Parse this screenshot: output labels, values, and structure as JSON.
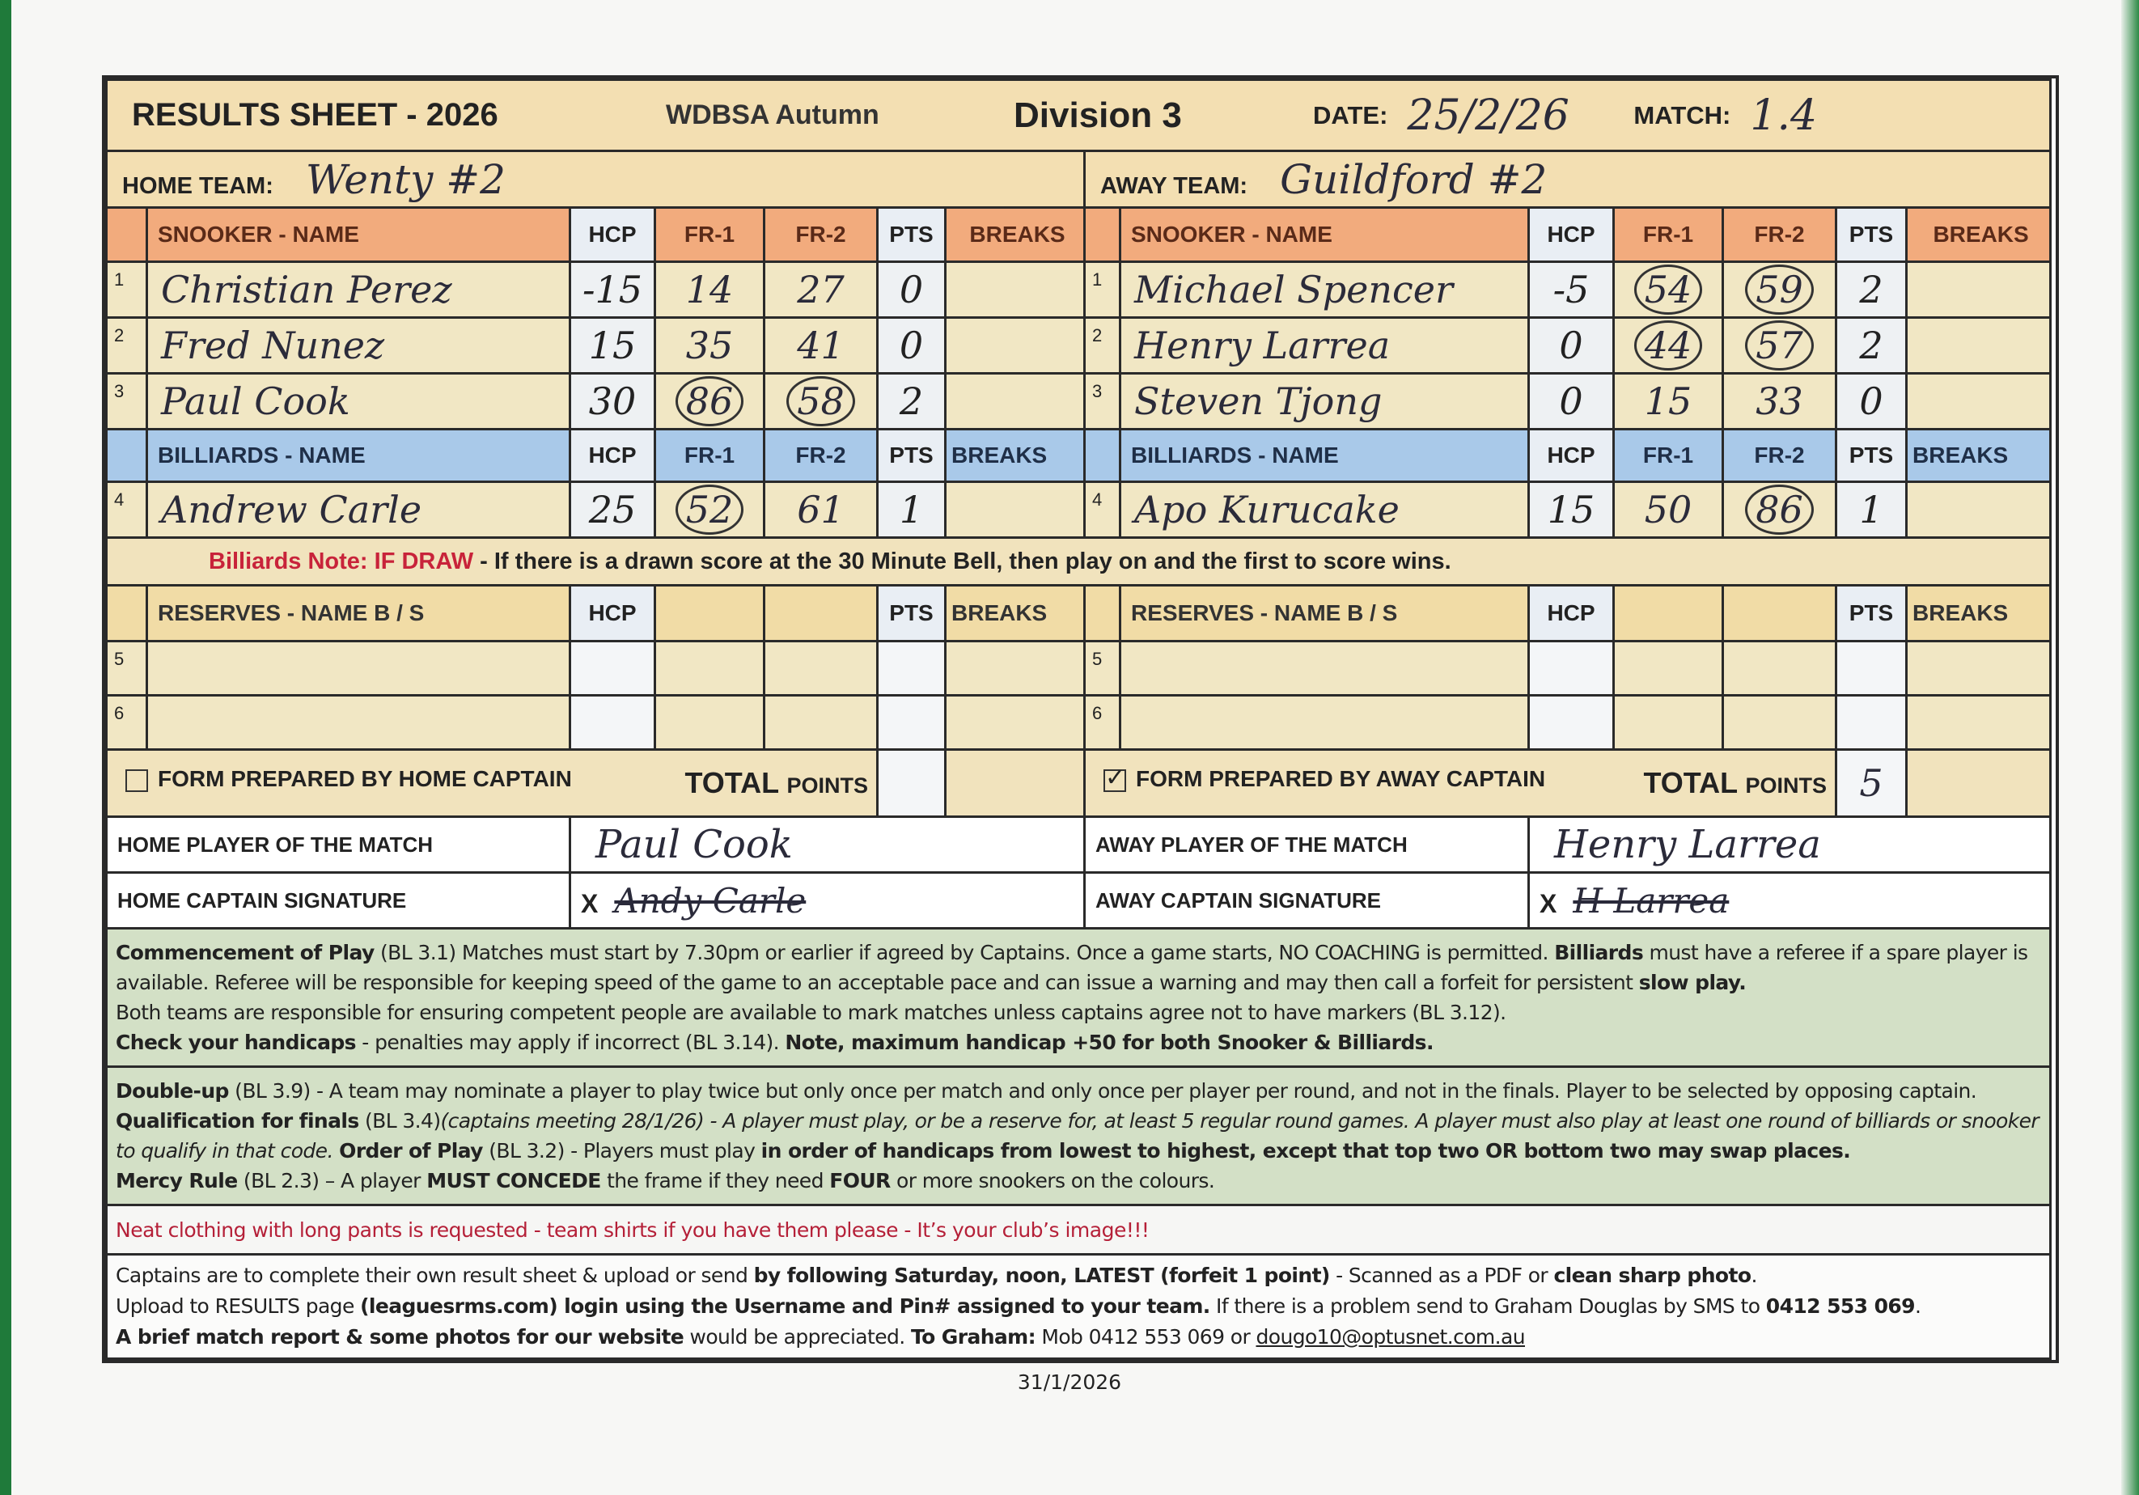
{
  "title": {
    "main": "RESULTS SHEET - 2026",
    "series": "WDBSA Autumn",
    "division": "Division 3",
    "date_label": "DATE:",
    "date_value": "25/2/26",
    "match_label": "MATCH:",
    "match_value": "1.4"
  },
  "home": {
    "team_label": "HOME TEAM:",
    "team_name": "Wenty #2",
    "snooker_header": "SNOOKER  -  NAME",
    "billiards_header": "BILLIARDS  -    NAME",
    "reserves_header": "RESERVES  -  NAME B / S",
    "players": [
      {
        "num": "1",
        "name": "Christian Perez",
        "hcp": "-15",
        "fr1": "14",
        "fr1_circled": false,
        "fr2": "27",
        "fr2_circled": false,
        "pts": "0",
        "breaks": ""
      },
      {
        "num": "2",
        "name": "Fred Nunez",
        "hcp": "15",
        "fr1": "35",
        "fr1_circled": false,
        "fr2": "41",
        "fr2_circled": false,
        "pts": "0",
        "breaks": ""
      },
      {
        "num": "3",
        "name": "Paul Cook",
        "hcp": "30",
        "fr1": "86",
        "fr1_circled": true,
        "fr2": "58",
        "fr2_circled": true,
        "pts": "2",
        "breaks": ""
      },
      {
        "num": "4",
        "name": "Andrew Carle",
        "hcp": "25",
        "fr1": "52",
        "fr1_circled": true,
        "fr2": "61",
        "fr2_circled": false,
        "pts": "1",
        "breaks": ""
      }
    ],
    "reserves": [
      {
        "num": "5"
      },
      {
        "num": "6"
      }
    ],
    "form_prepared": "FORM PREPARED BY HOME CAPTAIN",
    "form_checked": false,
    "total_points": "",
    "potm_label": "HOME PLAYER OF THE MATCH",
    "potm_value": "Paul Cook",
    "sig_label": "HOME CAPTAIN SIGNATURE",
    "sig_x": "X",
    "signature": "Andy Carle"
  },
  "away": {
    "team_label": "AWAY TEAM:",
    "team_name": "Guildford #2",
    "snooker_header": "SNOOKER  -  NAME",
    "billiards_header": "BILLIARDS  -    NAME",
    "reserves_header": "RESERVES  -  NAME B / S",
    "players": [
      {
        "num": "1",
        "name": "Michael Spencer",
        "hcp": "-5",
        "fr1": "54",
        "fr1_circled": true,
        "fr2": "59",
        "fr2_circled": true,
        "pts": "2",
        "breaks": ""
      },
      {
        "num": "2",
        "name": "Henry Larrea",
        "hcp": "0",
        "fr1": "44",
        "fr1_circled": true,
        "fr2": "57",
        "fr2_circled": true,
        "pts": "2",
        "breaks": ""
      },
      {
        "num": "3",
        "name": "Steven Tjong",
        "hcp": "0",
        "fr1": "15",
        "fr1_circled": false,
        "fr2": "33",
        "fr2_circled": false,
        "pts": "0",
        "breaks": ""
      },
      {
        "num": "4",
        "name": "Apo Kurucake",
        "hcp": "15",
        "fr1": "50",
        "fr1_circled": false,
        "fr2": "86",
        "fr2_circled": true,
        "pts": "1",
        "breaks": ""
      }
    ],
    "reserves": [
      {
        "num": "5"
      },
      {
        "num": "6"
      }
    ],
    "form_prepared": "FORM PREPARED BY AWAY CAPTAIN",
    "form_checked": true,
    "total_points": "5",
    "potm_label": "AWAY PLAYER OF THE MATCH",
    "potm_value": "Henry Larrea",
    "sig_label": "AWAY CAPTAIN SIGNATURE",
    "sig_x": "X",
    "signature": "H Larrea"
  },
  "columns": {
    "hcp": "HCP",
    "fr1": "FR-1",
    "fr2": "FR-2",
    "pts": "PTS",
    "breaks": "BREAKS",
    "total": "TOTAL",
    "points": "POINTS"
  },
  "billiards_note": {
    "label": "Billiards Note:  IF DRAW",
    "text": " - If there is a drawn score at the 30 Minute Bell, then play on and the first to score wins."
  },
  "rules_1": [
    {
      "t": "Commencement of Play",
      "s": "b"
    },
    {
      "t": " (BL 3.1) Matches must start by 7.30pm or earlier if agreed by Captains. Once a game starts, NO COACHING is permitted. "
    },
    {
      "t": "Billiards",
      "s": "b"
    },
    {
      "t": " must have a referee if a spare player is available. Referee will be responsible for keeping speed of the game to an acceptable pace and can issue a warning and may then call a forfeit for persistent "
    },
    {
      "t": "slow play.",
      "s": "b"
    },
    {
      "t": "",
      "br": true
    },
    {
      "t": "Both teams are responsible for ensuring competent people are available to mark matches unless captains agree not to have markers (BL 3.12)."
    },
    {
      "t": "",
      "br": true
    },
    {
      "t": "Check your handicaps",
      "s": "b"
    },
    {
      "t": " - penalties may apply if incorrect (BL 3.14). "
    },
    {
      "t": "Note, maximum handicap +50 for both Snooker & Billiards.",
      "s": "b"
    }
  ],
  "rules_2": [
    {
      "t": "Double-up",
      "s": "b"
    },
    {
      "t": " (BL 3.9) - A team may nominate a player to play twice but only once per match and only once per player per round, and not in the finals. Player to be selected by opposing captain."
    },
    {
      "t": "",
      "br": true
    },
    {
      "t": "Qualification for finals",
      "s": "b"
    },
    {
      "t": " (BL 3.4)"
    },
    {
      "t": "(captains meeting 28/1/26) - A player must play, or be a reserve for, at least 5 regular round games. A player must also play at least one round of billiards or snooker to qualify in that code.",
      "s": "i"
    },
    {
      "t": " "
    },
    {
      "t": "Order of Play",
      "s": "b"
    },
    {
      "t": " (BL 3.2) - Players must play "
    },
    {
      "t": "in order of handicaps from lowest to highest, except that top two OR bottom two may swap places.",
      "s": "b"
    },
    {
      "t": "",
      "br": true
    },
    {
      "t": "Mercy Rule",
      "s": "b"
    },
    {
      "t": " (BL 2.3) – A player "
    },
    {
      "t": "MUST CONCEDE",
      "s": "b"
    },
    {
      "t": " the frame if they need "
    },
    {
      "t": "FOUR",
      "s": "b"
    },
    {
      "t": " or more snookers on the colours."
    }
  ],
  "neat_clothing": "Neat clothing with long pants is requested - team shirts if you have them please - It’s your club’s image!!!",
  "captains_info": [
    {
      "t": "Captains are to complete their own result sheet & upload or send "
    },
    {
      "t": "by following Saturday, noon, LATEST (forfeit 1 point)",
      "s": "b"
    },
    {
      "t": " - Scanned as a PDF or "
    },
    {
      "t": "clean sharp photo",
      "s": "b"
    },
    {
      "t": "."
    },
    {
      "t": "",
      "br": true
    },
    {
      "t": "Upload to RESULTS page "
    },
    {
      "t": "(leaguesrms.com) login using the Username and Pin# assigned to your team.",
      "s": "b"
    },
    {
      "t": " If there is a problem send to Graham Douglas by SMS to "
    },
    {
      "t": "0412 553 069",
      "s": "b"
    },
    {
      "t": "."
    },
    {
      "t": "",
      "br": true
    },
    {
      "t": "A brief match report & some photos for our website",
      "s": "b"
    },
    {
      "t": " would be appreciated. "
    },
    {
      "t": "To Graham:",
      "s": "b"
    },
    {
      "t": " Mob 0412 553 069 or  "
    },
    {
      "t": "dougo10@optusnet.com.au",
      "s": "u",
      "link": true
    }
  ],
  "footer_date": "31/1/2026",
  "colors": {
    "snooker_header": "#f2ab7d",
    "billiards_header": "#a9c9e9",
    "row_cream": "#f1e7c4",
    "title_tan": "#f3dfb2",
    "rules_green": "#d3e0c6",
    "note_red": "#c8233a"
  }
}
